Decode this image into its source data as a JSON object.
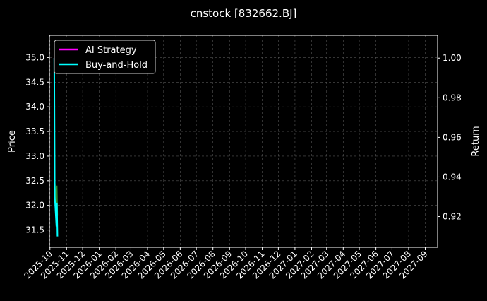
{
  "chart_data": {
    "type": "line",
    "title": "cnstock [832662.BJ]",
    "ylabel": "Price",
    "y2label": "Return",
    "xlim": [
      "2025-09-30",
      "2027-09-24"
    ],
    "ylim": [
      31.15,
      35.45
    ],
    "y2lim": [
      0.9045,
      1.0115
    ],
    "xticks": [
      "2025-10",
      "2025-11",
      "2025-12",
      "2026-01",
      "2026-02",
      "2026-03",
      "2026-04",
      "2026-05",
      "2026-06",
      "2026-07",
      "2026-08",
      "2026-09",
      "2026-10",
      "2026-11",
      "2026-12",
      "2027-01",
      "2027-02",
      "2027-03",
      "2027-04",
      "2027-05",
      "2027-06",
      "2027-07",
      "2027-08",
      "2027-09"
    ],
    "yticks": [
      31.5,
      32.0,
      32.5,
      33.0,
      33.5,
      34.0,
      34.5,
      35.0
    ],
    "y2ticks": [
      0.92,
      0.94,
      0.96,
      0.98,
      1.0
    ],
    "grid": true,
    "legend_position": "top-left",
    "x": [
      "2025-10-09",
      "2025-10-10",
      "2025-10-13",
      "2025-10-14",
      "2025-10-15"
    ],
    "price": {
      "values": [
        34.9,
        32.5,
        31.9,
        32.4,
        31.8
      ],
      "color": "#2e8b2e"
    },
    "series": [
      {
        "name": "AI Strategy",
        "axis": "right",
        "color": "#ff00ff",
        "values": [
          1.0,
          0.997,
          1.006,
          1.007,
          1.007
        ]
      },
      {
        "name": "Buy-and-Hold",
        "axis": "right",
        "color": "#00ffff",
        "values": [
          1.0,
          0.93,
          0.915,
          0.927,
          0.91
        ]
      }
    ]
  }
}
